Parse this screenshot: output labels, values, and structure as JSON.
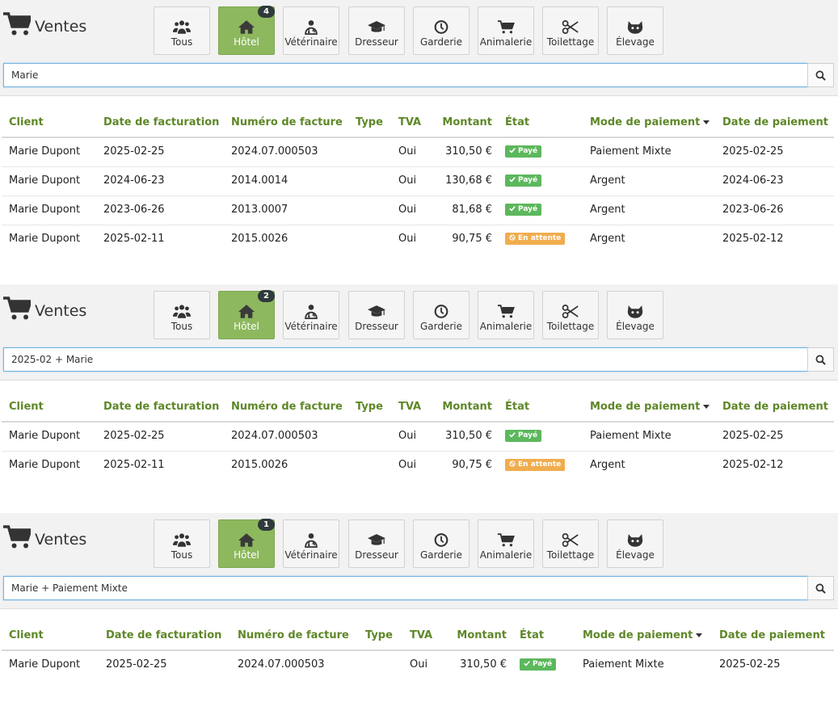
{
  "panels": [
    {
      "title": "Ventes",
      "search_value": "Marie",
      "active_tab_badge": "4",
      "tabs": [
        {
          "label": "Tous",
          "icon": "users-icon"
        },
        {
          "label": "Hôtel",
          "icon": "home-icon"
        },
        {
          "label": "Vétérinaire",
          "icon": "doctor-icon"
        },
        {
          "label": "Dresseur",
          "icon": "graduation-cap-icon"
        },
        {
          "label": "Garderie",
          "icon": "clock-icon"
        },
        {
          "label": "Animalerie",
          "icon": "cart-icon"
        },
        {
          "label": "Toilettage",
          "icon": "scissors-icon"
        },
        {
          "label": "Élevage",
          "icon": "cat-icon"
        }
      ],
      "columns": [
        "Client",
        "Date de facturation",
        "Numéro de facture",
        "Type",
        "TVA",
        "Montant",
        "État",
        "Mode de paiement",
        "Date de paiement"
      ],
      "rows": [
        {
          "client": "Marie Dupont",
          "date_facturation": "2025-02-25",
          "numero": "2024.07.000503",
          "type": "",
          "tva": "Oui",
          "montant": "310,50 €",
          "etat": "Payé",
          "mode": "Paiement Mixte",
          "date_paiement": "2025-02-25"
        },
        {
          "client": "Marie Dupont",
          "date_facturation": "2024-06-23",
          "numero": "2014.0014",
          "type": "",
          "tva": "Oui",
          "montant": "130,68 €",
          "etat": "Payé",
          "mode": "Argent",
          "date_paiement": "2024-06-23"
        },
        {
          "client": "Marie Dupont",
          "date_facturation": "2023-06-26",
          "numero": "2013.0007",
          "type": "",
          "tva": "Oui",
          "montant": "81,68 €",
          "etat": "Payé",
          "mode": "Argent",
          "date_paiement": "2023-06-26"
        },
        {
          "client": "Marie Dupont",
          "date_facturation": "2025-02-11",
          "numero": "2015.0026",
          "type": "",
          "tva": "Oui",
          "montant": "90,75 €",
          "etat": "En attente",
          "mode": "Argent",
          "date_paiement": "2025-02-12"
        }
      ]
    },
    {
      "title": "Ventes",
      "search_value": "2025-02 + Marie",
      "active_tab_badge": "2",
      "tabs": [
        {
          "label": "Tous",
          "icon": "users-icon"
        },
        {
          "label": "Hôtel",
          "icon": "home-icon"
        },
        {
          "label": "Vétérinaire",
          "icon": "doctor-icon"
        },
        {
          "label": "Dresseur",
          "icon": "graduation-cap-icon"
        },
        {
          "label": "Garderie",
          "icon": "clock-icon"
        },
        {
          "label": "Animalerie",
          "icon": "cart-icon"
        },
        {
          "label": "Toilettage",
          "icon": "scissors-icon"
        },
        {
          "label": "Élevage",
          "icon": "cat-icon"
        }
      ],
      "columns": [
        "Client",
        "Date de facturation",
        "Numéro de facture",
        "Type",
        "TVA",
        "Montant",
        "État",
        "Mode de paiement",
        "Date de paiement"
      ],
      "rows": [
        {
          "client": "Marie Dupont",
          "date_facturation": "2025-02-25",
          "numero": "2024.07.000503",
          "type": "",
          "tva": "Oui",
          "montant": "310,50 €",
          "etat": "Payé",
          "mode": "Paiement Mixte",
          "date_paiement": "2025-02-25"
        },
        {
          "client": "Marie Dupont",
          "date_facturation": "2025-02-11",
          "numero": "2015.0026",
          "type": "",
          "tva": "Oui",
          "montant": "90,75 €",
          "etat": "En attente",
          "mode": "Argent",
          "date_paiement": "2025-02-12"
        }
      ]
    },
    {
      "title": "Ventes",
      "search_value": "Marie + Paiement Mixte",
      "active_tab_badge": "1",
      "tabs": [
        {
          "label": "Tous",
          "icon": "users-icon"
        },
        {
          "label": "Hôtel",
          "icon": "home-icon"
        },
        {
          "label": "Vétérinaire",
          "icon": "doctor-icon"
        },
        {
          "label": "Dresseur",
          "icon": "graduation-cap-icon"
        },
        {
          "label": "Garderie",
          "icon": "clock-icon"
        },
        {
          "label": "Animalerie",
          "icon": "cart-icon"
        },
        {
          "label": "Toilettage",
          "icon": "scissors-icon"
        },
        {
          "label": "Élevage",
          "icon": "cat-icon"
        }
      ],
      "columns": [
        "Client",
        "Date de facturation",
        "Numéro de facture",
        "Type",
        "TVA",
        "Montant",
        "État",
        "Mode de paiement",
        "Date de paiement"
      ],
      "rows": [
        {
          "client": "Marie Dupont",
          "date_facturation": "2025-02-25",
          "numero": "2024.07.000503",
          "type": "",
          "tva": "Oui",
          "montant": "310,50 €",
          "etat": "Payé",
          "mode": "Paiement Mixte",
          "date_paiement": "2025-02-25"
        }
      ]
    }
  ],
  "colors": {
    "accent_green": "#8db85e",
    "header_green_text": "#5e8727",
    "paid_badge": "#5cb85c",
    "pending_badge": "#f0ad4e",
    "count_badge": "#2f3b3b",
    "header_bg": "#f2f2f2"
  },
  "icons": {
    "brand": "shopping-cart-icon",
    "search": "search-icon",
    "sort": "sort-desc-caret",
    "paid": "check-icon",
    "pending": "ban-icon"
  }
}
